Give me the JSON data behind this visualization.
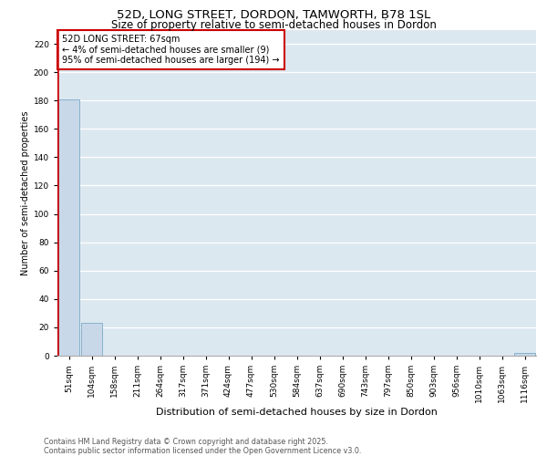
{
  "title1": "52D, LONG STREET, DORDON, TAMWORTH, B78 1SL",
  "title2": "Size of property relative to semi-detached houses in Dordon",
  "xlabel": "Distribution of semi-detached houses by size in Dordon",
  "ylabel": "Number of semi-detached properties",
  "bins": [
    "51sqm",
    "104sqm",
    "158sqm",
    "211sqm",
    "264sqm",
    "317sqm",
    "371sqm",
    "424sqm",
    "477sqm",
    "530sqm",
    "584sqm",
    "637sqm",
    "690sqm",
    "743sqm",
    "797sqm",
    "850sqm",
    "903sqm",
    "956sqm",
    "1010sqm",
    "1063sqm",
    "1116sqm"
  ],
  "values": [
    181,
    23,
    0,
    0,
    0,
    0,
    0,
    0,
    0,
    0,
    0,
    0,
    0,
    0,
    0,
    0,
    0,
    0,
    0,
    0,
    2
  ],
  "bar_color": "#c8d8e8",
  "bar_edge_color": "#7aaac8",
  "annotation_text": "52D LONG STREET: 67sqm\n← 4% of semi-detached houses are smaller (9)\n95% of semi-detached houses are larger (194) →",
  "annotation_box_color": "#cc0000",
  "subject_line_color": "#cc0000",
  "ylim": [
    0,
    230
  ],
  "yticks": [
    0,
    20,
    40,
    60,
    80,
    100,
    120,
    140,
    160,
    180,
    200,
    220
  ],
  "background_color": "#dce8f0",
  "footer_text": "Contains HM Land Registry data © Crown copyright and database right 2025.\nContains public sector information licensed under the Open Government Licence v3.0.",
  "title1_fontsize": 9.5,
  "title2_fontsize": 8.5,
  "xlabel_fontsize": 8,
  "ylabel_fontsize": 7,
  "tick_fontsize": 6.5,
  "annotation_fontsize": 7,
  "footer_fontsize": 5.8
}
